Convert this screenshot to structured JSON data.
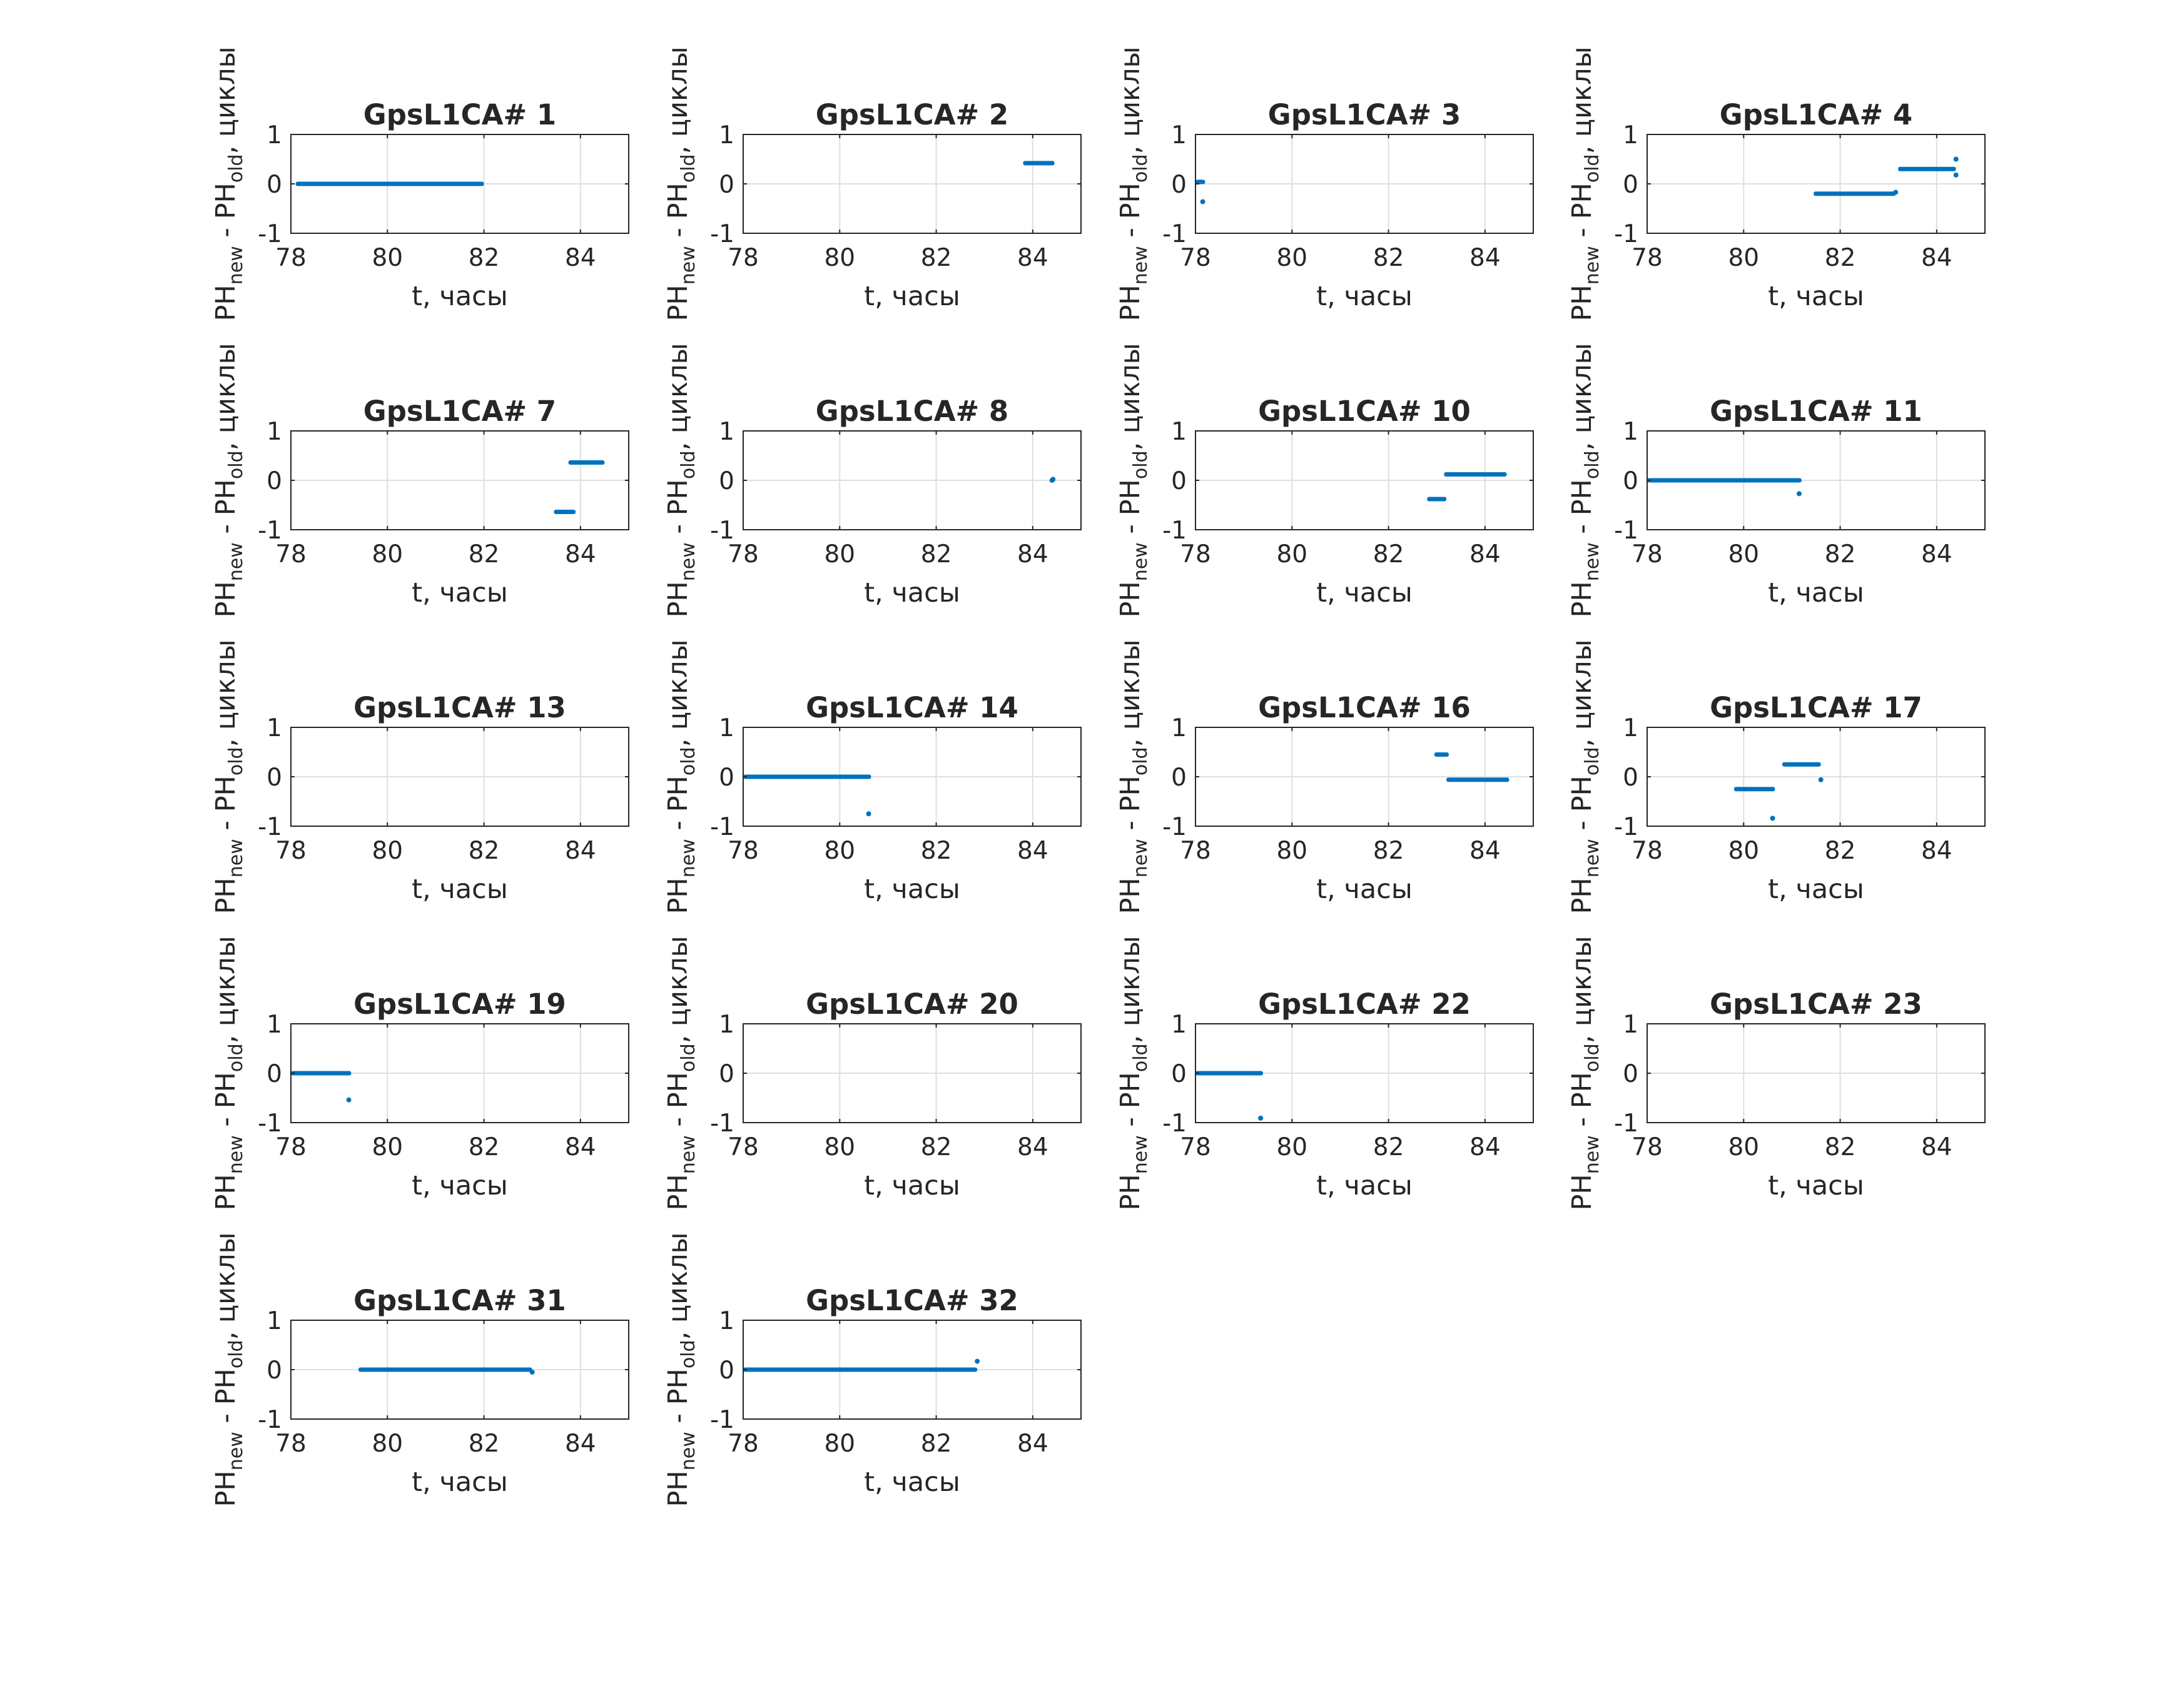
{
  "figure": {
    "point_color": "#0072BD",
    "grid_color": "#DFDFDF",
    "axes_color": "#262626"
  },
  "chart_data": [
    {
      "type": "scatter",
      "title": "GpsL1CA# 1",
      "xlabel": "t, часы",
      "ylabel": "PHnew - PHold, циклы",
      "xlim": [
        78,
        85
      ],
      "ylim": [
        -1,
        1
      ],
      "xticks": [
        "78",
        "80",
        "82",
        "84"
      ],
      "yticks": [
        "-1",
        "0",
        "1"
      ],
      "grid": true,
      "segments": [
        {
          "x": [
            78.1,
            82.0
          ],
          "y": 0.0
        }
      ],
      "points": []
    },
    {
      "type": "scatter",
      "title": "GpsL1CA# 2",
      "xlabel": "t, часы",
      "ylabel": "PHnew - PHold, циклы",
      "xlim": [
        78,
        85
      ],
      "ylim": [
        -1,
        1
      ],
      "xticks": [
        "78",
        "80",
        "82",
        "84"
      ],
      "yticks": [
        "-1",
        "0",
        "1"
      ],
      "grid": true,
      "segments": [
        {
          "x": [
            83.8,
            84.45
          ],
          "y": 0.42
        }
      ],
      "points": []
    },
    {
      "type": "scatter",
      "title": "GpsL1CA# 3",
      "xlabel": "t, часы",
      "ylabel": "PHnew - PHold, циклы",
      "xlim": [
        78,
        85
      ],
      "ylim": [
        -1,
        1
      ],
      "xticks": [
        "78",
        "80",
        "82",
        "84"
      ],
      "yticks": [
        "-1",
        "0",
        "1"
      ],
      "grid": true,
      "segments": [
        {
          "x": [
            78.0,
            78.2
          ],
          "y": 0.04
        }
      ],
      "points": [
        {
          "x": 78.15,
          "y": -0.36
        }
      ]
    },
    {
      "type": "scatter",
      "title": "GpsL1CA# 4",
      "xlabel": "t, часы",
      "ylabel": "PHnew - PHold, циклы",
      "xlim": [
        78,
        85
      ],
      "ylim": [
        -1,
        1
      ],
      "xticks": [
        "78",
        "80",
        "82",
        "84"
      ],
      "yticks": [
        "-1",
        "0",
        "1"
      ],
      "grid": true,
      "segments": [
        {
          "x": [
            81.45,
            83.15
          ],
          "y": -0.2
        },
        {
          "x": [
            83.2,
            84.4
          ],
          "y": 0.3
        }
      ],
      "points": [
        {
          "x": 83.15,
          "y": -0.17
        },
        {
          "x": 84.4,
          "y": 0.5
        },
        {
          "x": 84.4,
          "y": 0.18
        }
      ]
    },
    {
      "type": "scatter",
      "title": "GpsL1CA# 7",
      "xlabel": "t, часы",
      "ylabel": "PHnew - PHold, циклы",
      "xlim": [
        78,
        85
      ],
      "ylim": [
        -1,
        1
      ],
      "xticks": [
        "78",
        "80",
        "82",
        "84"
      ],
      "yticks": [
        "-1",
        "0",
        "1"
      ],
      "grid": true,
      "segments": [
        {
          "x": [
            83.45,
            83.9
          ],
          "y": -0.64
        },
        {
          "x": [
            83.75,
            84.5
          ],
          "y": 0.36
        }
      ],
      "points": []
    },
    {
      "type": "scatter",
      "title": "GpsL1CA# 8",
      "xlabel": "t, часы",
      "ylabel": "PHnew - PHold, циклы",
      "xlim": [
        78,
        85
      ],
      "ylim": [
        -1,
        1
      ],
      "xticks": [
        "78",
        "80",
        "82",
        "84"
      ],
      "yticks": [
        "-1",
        "0",
        "1"
      ],
      "grid": true,
      "segments": [],
      "points": [
        {
          "x": 84.4,
          "y": 0.0
        },
        {
          "x": 84.42,
          "y": 0.02
        }
      ]
    },
    {
      "type": "scatter",
      "title": "GpsL1CA# 10",
      "xlabel": "t, часы",
      "ylabel": "PHnew - PHold, циклы",
      "xlim": [
        78,
        85
      ],
      "ylim": [
        -1,
        1
      ],
      "xticks": [
        "78",
        "80",
        "82",
        "84"
      ],
      "yticks": [
        "-1",
        "0",
        "1"
      ],
      "grid": true,
      "segments": [
        {
          "x": [
            82.8,
            83.2
          ],
          "y": -0.38
        },
        {
          "x": [
            83.15,
            84.45
          ],
          "y": 0.12
        }
      ],
      "points": []
    },
    {
      "type": "scatter",
      "title": "GpsL1CA# 11",
      "xlabel": "t, часы",
      "ylabel": "PHnew - PHold, циклы",
      "xlim": [
        78,
        85
      ],
      "ylim": [
        -1,
        1
      ],
      "xticks": [
        "78",
        "80",
        "82",
        "84"
      ],
      "yticks": [
        "-1",
        "0",
        "1"
      ],
      "grid": true,
      "segments": [
        {
          "x": [
            78.0,
            81.2
          ],
          "y": 0.0
        }
      ],
      "points": [
        {
          "x": 81.15,
          "y": -0.27
        }
      ]
    },
    {
      "type": "scatter",
      "title": "GpsL1CA# 13",
      "xlabel": "t, часы",
      "ylabel": "PHnew - PHold, циклы",
      "xlim": [
        78,
        85
      ],
      "ylim": [
        -1,
        1
      ],
      "xticks": [
        "78",
        "80",
        "82",
        "84"
      ],
      "yticks": [
        "-1",
        "0",
        "1"
      ],
      "grid": true,
      "segments": [],
      "points": []
    },
    {
      "type": "scatter",
      "title": "GpsL1CA# 14",
      "xlabel": "t, часы",
      "ylabel": "PHnew - PHold, циклы",
      "xlim": [
        78,
        85
      ],
      "ylim": [
        -1,
        1
      ],
      "xticks": [
        "78",
        "80",
        "82",
        "84"
      ],
      "yticks": [
        "-1",
        "0",
        "1"
      ],
      "grid": true,
      "segments": [
        {
          "x": [
            78.0,
            80.65
          ],
          "y": 0.0
        }
      ],
      "points": [
        {
          "x": 80.6,
          "y": -0.75
        }
      ]
    },
    {
      "type": "scatter",
      "title": "GpsL1CA# 16",
      "xlabel": "t, часы",
      "ylabel": "PHnew - PHold, циклы",
      "xlim": [
        78,
        85
      ],
      "ylim": [
        -1,
        1
      ],
      "xticks": [
        "78",
        "80",
        "82",
        "84"
      ],
      "yticks": [
        "-1",
        "0",
        "1"
      ],
      "grid": true,
      "segments": [
        {
          "x": [
            82.95,
            83.25
          ],
          "y": 0.45
        },
        {
          "x": [
            83.2,
            84.5
          ],
          "y": -0.06
        }
      ],
      "points": []
    },
    {
      "type": "scatter",
      "title": "GpsL1CA# 17",
      "xlabel": "t, часы",
      "ylabel": "PHnew - PHold, циклы",
      "xlim": [
        78,
        85
      ],
      "ylim": [
        -1,
        1
      ],
      "xticks": [
        "78",
        "80",
        "82",
        "84"
      ],
      "yticks": [
        "-1",
        "0",
        "1"
      ],
      "grid": true,
      "segments": [
        {
          "x": [
            79.8,
            80.65
          ],
          "y": -0.25
        },
        {
          "x": [
            80.8,
            81.6
          ],
          "y": 0.25
        }
      ],
      "points": [
        {
          "x": 80.6,
          "y": -0.84
        },
        {
          "x": 81.6,
          "y": -0.06
        }
      ]
    },
    {
      "type": "scatter",
      "title": "GpsL1CA# 19",
      "xlabel": "t, часы",
      "ylabel": "PHnew - PHold, циклы",
      "xlim": [
        78,
        85
      ],
      "ylim": [
        -1,
        1
      ],
      "xticks": [
        "78",
        "80",
        "82",
        "84"
      ],
      "yticks": [
        "-1",
        "0",
        "1"
      ],
      "grid": true,
      "segments": [
        {
          "x": [
            78.0,
            79.25
          ],
          "y": 0.0
        }
      ],
      "points": [
        {
          "x": 79.2,
          "y": -0.54
        }
      ]
    },
    {
      "type": "scatter",
      "title": "GpsL1CA# 20",
      "xlabel": "t, часы",
      "ylabel": "PHnew - PHold, циклы",
      "xlim": [
        78,
        85
      ],
      "ylim": [
        -1,
        1
      ],
      "xticks": [
        "78",
        "80",
        "82",
        "84"
      ],
      "yticks": [
        "-1",
        "0",
        "1"
      ],
      "grid": true,
      "segments": [],
      "points": []
    },
    {
      "type": "scatter",
      "title": "GpsL1CA# 22",
      "xlabel": "t, часы",
      "ylabel": "PHnew - PHold, циклы",
      "xlim": [
        78,
        85
      ],
      "ylim": [
        -1,
        1
      ],
      "xticks": [
        "78",
        "80",
        "82",
        "84"
      ],
      "yticks": [
        "-1",
        "0",
        "1"
      ],
      "grid": true,
      "segments": [
        {
          "x": [
            78.0,
            79.4
          ],
          "y": 0.0
        }
      ],
      "points": [
        {
          "x": 79.35,
          "y": -0.91
        }
      ]
    },
    {
      "type": "scatter",
      "title": "GpsL1CA# 23",
      "xlabel": "t, часы",
      "ylabel": "PHnew - PHold, циклы",
      "xlim": [
        78,
        85
      ],
      "ylim": [
        -1,
        1
      ],
      "xticks": [
        "78",
        "80",
        "82",
        "84"
      ],
      "yticks": [
        "-1",
        "0",
        "1"
      ],
      "grid": true,
      "segments": [],
      "points": []
    },
    {
      "type": "scatter",
      "title": "GpsL1CA# 31",
      "xlabel": "t, часы",
      "ylabel": "PHnew - PHold, циклы",
      "xlim": [
        78,
        85
      ],
      "ylim": [
        -1,
        1
      ],
      "xticks": [
        "78",
        "80",
        "82",
        "84"
      ],
      "yticks": [
        "-1",
        "0",
        "1"
      ],
      "grid": true,
      "segments": [
        {
          "x": [
            79.4,
            83.0
          ],
          "y": 0.0
        }
      ],
      "points": [
        {
          "x": 83.0,
          "y": -0.05
        }
      ]
    },
    {
      "type": "scatter",
      "title": "GpsL1CA# 32",
      "xlabel": "t, часы",
      "ylabel": "PHnew - PHold, циклы",
      "xlim": [
        78,
        85
      ],
      "ylim": [
        -1,
        1
      ],
      "xticks": [
        "78",
        "80",
        "82",
        "84"
      ],
      "yticks": [
        "-1",
        "0",
        "1"
      ],
      "grid": true,
      "segments": [
        {
          "x": [
            78.0,
            82.85
          ],
          "y": 0.0
        }
      ],
      "points": [
        {
          "x": 82.85,
          "y": 0.17
        }
      ]
    }
  ]
}
